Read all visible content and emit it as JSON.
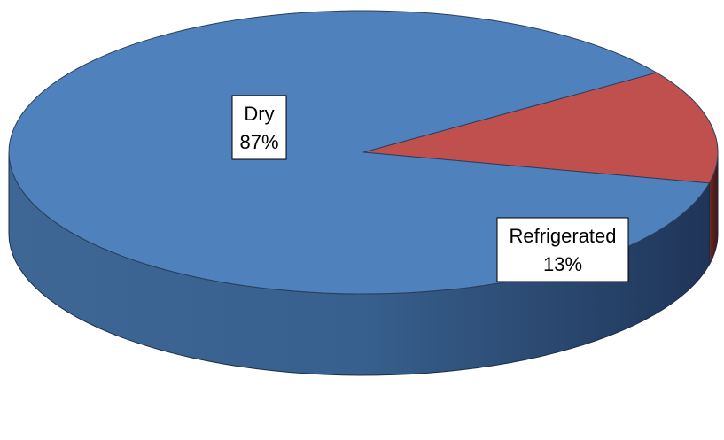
{
  "chart_data": {
    "type": "pie",
    "style": "3d",
    "slices": [
      {
        "name": "Dry",
        "value": 87,
        "label": "87%",
        "color": "#4f81bd"
      },
      {
        "name": "Refrigerated",
        "value": 13,
        "label": "13%",
        "color": "#c0504d"
      }
    ],
    "title": "",
    "legend": "none"
  }
}
